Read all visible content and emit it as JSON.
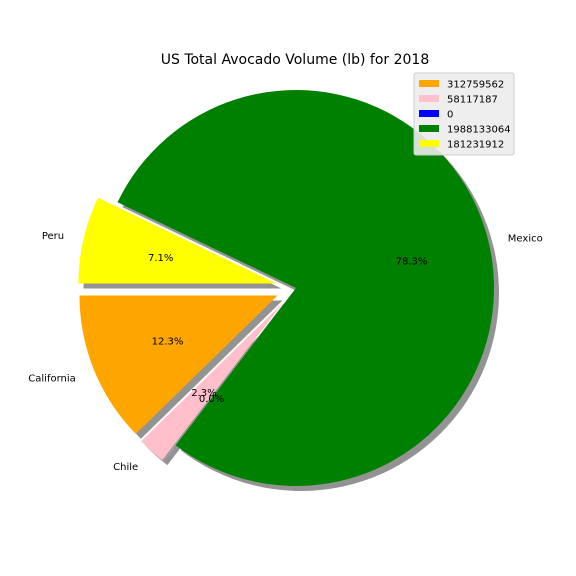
{
  "chart_data": {
    "type": "pie",
    "title": "US Total Avocado Volume (lb) for 2018",
    "categories": [
      "California",
      "Chile",
      "Mexico",
      "Peru"
    ],
    "slices": [
      {
        "label": "California",
        "value": 312759562,
        "pct_label": "12.3%",
        "color": "#ffa500",
        "exploded": true
      },
      {
        "label": "Chile",
        "value": 58117187,
        "pct_label": "2.3%",
        "color": "#ffc0cb",
        "exploded": true
      },
      {
        "label": "",
        "value": 0,
        "pct_label": "0.0%",
        "color": "#0000ff",
        "exploded": true
      },
      {
        "label": "Mexico",
        "value": 1988133064,
        "pct_label": "78.3%",
        "color": "#008000",
        "exploded": false
      },
      {
        "label": "Peru",
        "value": 181231912,
        "pct_label": "7.1%",
        "color": "#ffff00",
        "exploded": true
      }
    ],
    "legend": {
      "placement": "top-right",
      "entries": [
        "312759562",
        "58117187",
        "0",
        "1988133064",
        "181231912"
      ]
    },
    "shadow": true
  }
}
